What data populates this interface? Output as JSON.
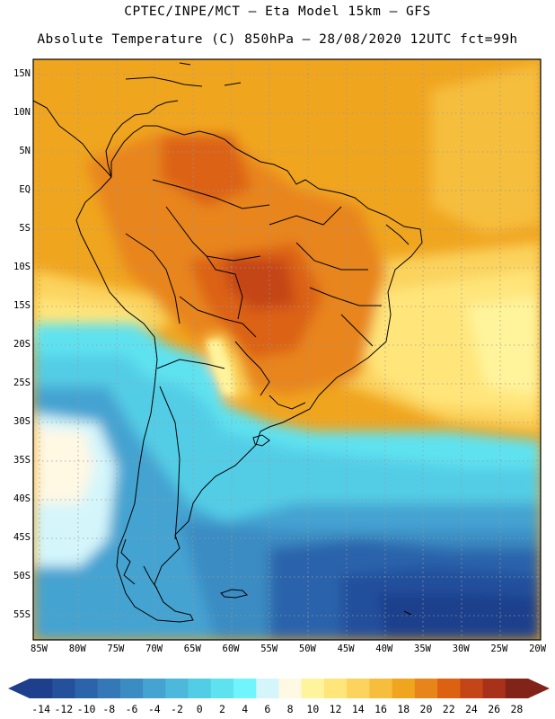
{
  "header": {
    "line1": "CPTEC/INPE/MCT –  Eta Model 15km – GFS",
    "line2": "Absolute Temperature (C) 850hPa – 28/08/2020 12UTC fct=99h"
  },
  "map": {
    "lat_labels": [
      "15N",
      "10N",
      "5N",
      "EQ",
      "5S",
      "10S",
      "15S",
      "20S",
      "25S",
      "30S",
      "35S",
      "40S",
      "45S",
      "50S",
      "55S"
    ],
    "lon_labels": [
      "85W",
      "80W",
      "75W",
      "70W",
      "65W",
      "60W",
      "55W",
      "50W",
      "45W",
      "40W",
      "35W",
      "30W",
      "25W",
      "20W"
    ]
  },
  "colorbar": {
    "labels": [
      "-14",
      "-12",
      "-10",
      "-8",
      "-6",
      "-4",
      "-2",
      "0",
      "2",
      "4",
      "6",
      "8",
      "10",
      "12",
      "14",
      "16",
      "18",
      "20",
      "22",
      "24",
      "26",
      "28"
    ],
    "colors": [
      "#1e3f8c",
      "#24509c",
      "#2c64ab",
      "#3478b8",
      "#3b8cc3",
      "#44a3d1",
      "#4cb9dc",
      "#52cde6",
      "#5ee2f0",
      "#6ff5fb",
      "#d4f6fb",
      "#fff8e3",
      "#fff49c",
      "#ffe57a",
      "#fbd35d",
      "#f6be3c",
      "#f0a51f",
      "#e8851a",
      "#dc6212",
      "#c44516",
      "#a8311a",
      "#812319"
    ]
  }
}
